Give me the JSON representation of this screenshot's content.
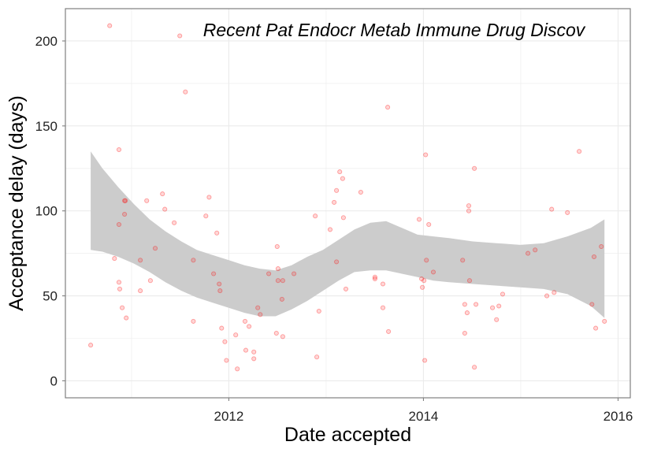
{
  "chart_data": {
    "type": "scatter",
    "title": "Recent Pat Endocr Metab Immune Drug Discov",
    "xlabel": "Date accepted",
    "ylabel": "Acceptance delay (days)",
    "x_scale": "date",
    "xlim": [
      "2010-04-28",
      "2016-02-16"
    ],
    "ylim": [
      -10,
      219
    ],
    "grid": true,
    "legend": "none",
    "x_ticks": [
      {
        "value": "2012-01-01",
        "label": "2012"
      },
      {
        "value": "2014-01-01",
        "label": "2014"
      },
      {
        "value": "2016-01-01",
        "label": "2016"
      }
    ],
    "x_minor_ticks": [
      "2011-01-01",
      "2013-01-01",
      "2015-01-01"
    ],
    "y_ticks": [
      {
        "value": 0,
        "label": "0"
      },
      {
        "value": 50,
        "label": "50"
      },
      {
        "value": 100,
        "label": "100"
      },
      {
        "value": 150,
        "label": "150"
      },
      {
        "value": 200,
        "label": "200"
      }
    ],
    "y_minor_ticks": [
      25,
      75,
      125,
      175
    ],
    "points": {
      "x": [
        "2010-08-01",
        "2010-10-11",
        "2010-10-29",
        "2010-11-15",
        "2010-11-15",
        "2010-11-15",
        "2010-11-18",
        "2010-11-27",
        "2010-12-06",
        "2010-12-09",
        "2010-12-06",
        "2010-12-12",
        "2011-02-03",
        "2011-02-03",
        "2011-02-27",
        "2011-03-13",
        "2011-03-31",
        "2011-04-27",
        "2011-05-06",
        "2011-06-10",
        "2011-07-01",
        "2011-07-22",
        "2011-08-21",
        "2011-08-21",
        "2011-10-07",
        "2011-10-19",
        "2011-11-05",
        "2011-11-17",
        "2011-11-26",
        "2011-11-29",
        "2011-12-05",
        "2011-12-17",
        "2011-12-23",
        "2012-01-27",
        "2012-02-02",
        "2012-03-02",
        "2012-03-05",
        "2012-03-17",
        "2012-04-04",
        "2012-04-04",
        "2012-04-19",
        "2012-04-28",
        "2012-05-30",
        "2012-06-28",
        "2012-07-01",
        "2012-07-04",
        "2012-07-04",
        "2012-07-22",
        "2012-07-19",
        "2012-07-22",
        "2012-09-02",
        "2012-11-21",
        "2012-11-27",
        "2012-12-05",
        "2013-01-16",
        "2013-01-31",
        "2013-02-09",
        "2013-02-09",
        "2013-02-21",
        "2013-03-04",
        "2013-03-07",
        "2013-03-16",
        "2013-05-11",
        "2013-07-03",
        "2013-07-03",
        "2013-08-02",
        "2013-08-02",
        "2013-08-20",
        "2013-08-23",
        "2013-12-16",
        "2013-12-25",
        "2013-12-28",
        "2014-01-03",
        "2014-01-06",
        "2014-01-09",
        "2014-01-12",
        "2014-01-21",
        "2014-02-07",
        "2014-05-28",
        "2014-06-05",
        "2014-06-05",
        "2014-06-14",
        "2014-06-20",
        "2014-06-20",
        "2014-06-23",
        "2014-07-11",
        "2014-07-17",
        "2014-07-11",
        "2014-09-17",
        "2014-10-02",
        "2014-10-11",
        "2014-10-25",
        "2015-01-28",
        "2015-02-24",
        "2015-04-09",
        "2015-04-27",
        "2015-05-06",
        "2015-06-25",
        "2015-08-08",
        "2015-09-25",
        "2015-10-03",
        "2015-10-09",
        "2015-10-30",
        "2015-11-11"
      ],
      "y": [
        21,
        209,
        72,
        136,
        92,
        58,
        54,
        43,
        106,
        106,
        98,
        37,
        71,
        53,
        106,
        59,
        78,
        110,
        101,
        93,
        203,
        170,
        71,
        35,
        97,
        108,
        63,
        87,
        57,
        53,
        31,
        23,
        12,
        27,
        7,
        35,
        18,
        32,
        17,
        13,
        43,
        39,
        63,
        28,
        79,
        66,
        59,
        59,
        48,
        26,
        63,
        97,
        14,
        41,
        89,
        105,
        112,
        70,
        123,
        119,
        96,
        54,
        111,
        61,
        60,
        57,
        43,
        161,
        29,
        95,
        60,
        55,
        59,
        12,
        133,
        71,
        92,
        64,
        71,
        28,
        45,
        40,
        103,
        100,
        59,
        125,
        45,
        8,
        43,
        36,
        44,
        51,
        75,
        77,
        50,
        101,
        52,
        99,
        135,
        45,
        73,
        31,
        79,
        35
      ]
    },
    "smoothing_band": {
      "x": [
        "2010-08-01",
        "2010-09-14",
        "2010-11-12",
        "2011-01-10",
        "2011-03-10",
        "2011-05-08",
        "2011-07-07",
        "2011-09-03",
        "2011-11-01",
        "2012-01-01",
        "2012-02-29",
        "2012-04-27",
        "2012-06-25",
        "2012-08-24",
        "2012-10-22",
        "2012-12-20",
        "2013-02-17",
        "2013-04-17",
        "2013-06-16",
        "2013-08-14",
        "2013-10-12",
        "2013-12-10",
        "2014-02-07",
        "2014-04-07",
        "2014-07-05",
        "2014-10-02",
        "2014-12-30",
        "2015-03-28",
        "2015-06-25",
        "2015-09-21",
        "2015-11-11"
      ],
      "upper": [
        135,
        125,
        114,
        104,
        95,
        88,
        82,
        77,
        74,
        71,
        68,
        66,
        65,
        68,
        73,
        77,
        83,
        89,
        93,
        94,
        90,
        86,
        85,
        84,
        82,
        81,
        80,
        81,
        85,
        90,
        95
      ],
      "lower": [
        77,
        76,
        73,
        69,
        64,
        58,
        53,
        49,
        46,
        43,
        40,
        38,
        38,
        42,
        47,
        53,
        59,
        64,
        65,
        65,
        63,
        61,
        59,
        58,
        57,
        56,
        55,
        54,
        51,
        44,
        37
      ]
    }
  },
  "colors": {
    "point": "#FF0000",
    "band": "#CCCCCC",
    "grid": "#EBEBEB",
    "panel_border": "#808080",
    "axis_tick": "#808080"
  }
}
